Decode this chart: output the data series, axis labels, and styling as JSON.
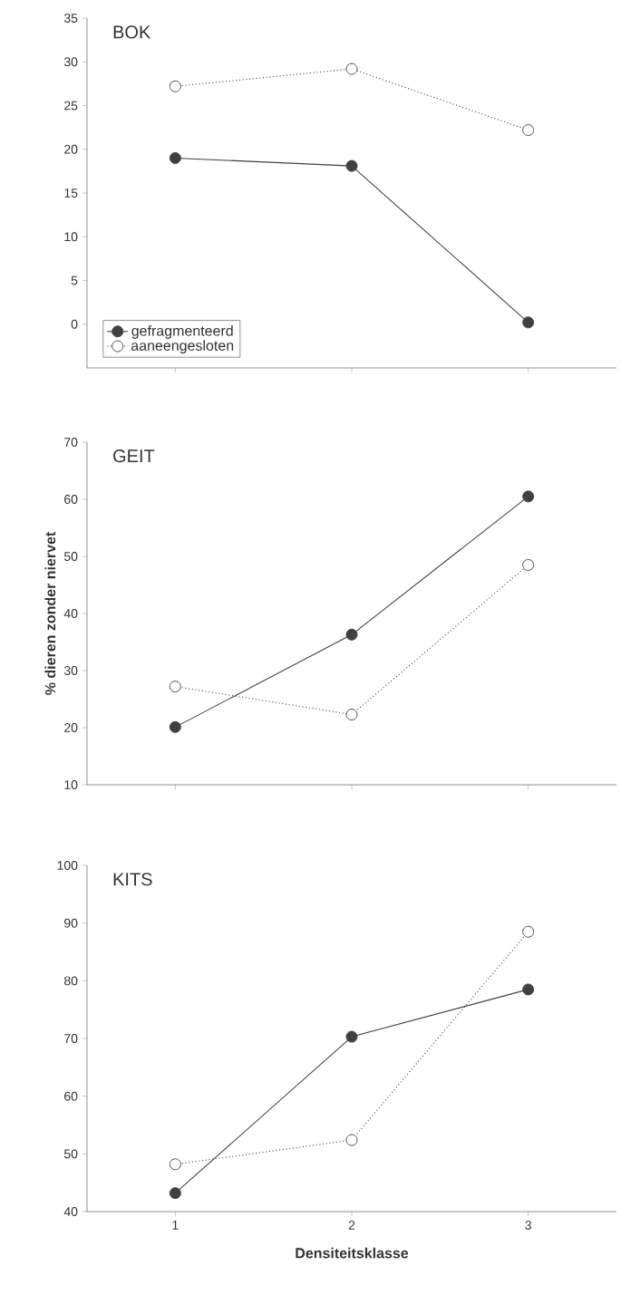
{
  "chart_data": [
    {
      "type": "line",
      "title": "BOK",
      "categories": [
        "1",
        "2",
        "3"
      ],
      "ylim": [
        -5,
        35
      ],
      "yticks": [
        0,
        5,
        10,
        15,
        20,
        25,
        30,
        35
      ],
      "tick_labels": "y",
      "legend": "bottom left",
      "series": [
        {
          "name": "gefragmenteerd",
          "color": "#404040",
          "values": [
            19.0,
            18.1,
            0.2
          ],
          "marker": "circle",
          "line_style": "solid"
        },
        {
          "name": "aaneengesloten",
          "color": "#404040",
          "values": [
            27.2,
            29.2,
            22.2
          ],
          "marker": "circle",
          "line_style": "dotted"
        }
      ]
    },
    {
      "type": "line",
      "title": "GEIT",
      "ylabel": "% dieren zonder niervet",
      "categories": [
        "1",
        "2",
        "3"
      ],
      "ylim": [
        10,
        70
      ],
      "yticks": [
        10,
        20,
        30,
        40,
        50,
        60,
        70
      ],
      "tick_labels": "y",
      "series": [
        {
          "color": "#404040",
          "values": [
            20.1,
            36.3,
            60.5
          ],
          "marker": "circle",
          "line_style": "solid"
        },
        {
          "color": "#404040",
          "values": [
            27.2,
            22.3,
            48.5
          ],
          "marker": "circle",
          "line_style": "dotted"
        }
      ]
    },
    {
      "type": "line",
      "title": "KITS",
      "xlabel": "Densiteitsklasse",
      "categories": [
        "1",
        "2",
        "3"
      ],
      "ylim": [
        40,
        100
      ],
      "yticks": [
        40,
        50,
        60,
        70,
        80,
        90,
        100
      ],
      "series": [
        {
          "color": "#404040",
          "values": [
            43.2,
            70.3,
            78.5
          ],
          "marker": "circle",
          "line_style": "solid"
        },
        {
          "color": "#404040",
          "values": [
            48.2,
            52.4,
            88.5
          ],
          "marker": "circle",
          "line_style": "dotted"
        }
      ]
    }
  ]
}
